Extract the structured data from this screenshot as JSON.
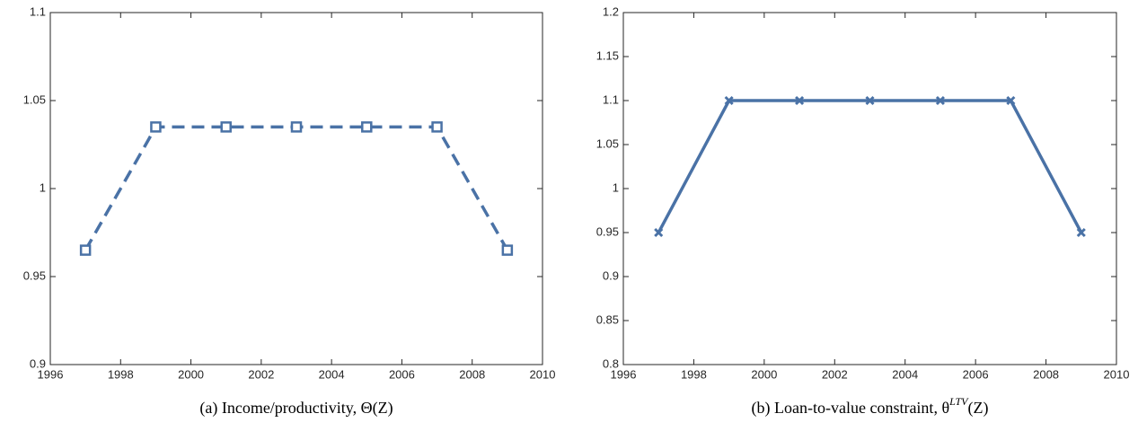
{
  "chart_data": [
    {
      "type": "line",
      "caption": "(a) Income/productivity, Θ(Z)",
      "x": [
        1997,
        1999,
        2001,
        2003,
        2005,
        2007,
        2009
      ],
      "series": [
        {
          "color": "#4a72a6",
          "line_style": "dashed",
          "marker": "square",
          "values": [
            0.965,
            1.035,
            1.035,
            1.035,
            1.035,
            1.035,
            0.965
          ]
        }
      ],
      "xlim": [
        1996,
        2010
      ],
      "xticks": [
        1996,
        1998,
        2000,
        2002,
        2004,
        2006,
        2008,
        2010
      ],
      "ylim": [
        0.9,
        1.1
      ],
      "yticks": [
        0.9,
        0.95,
        1,
        1.05,
        1.1
      ],
      "grid": false
    },
    {
      "type": "line",
      "caption": "(b) Loan-to-value constraint, θ",
      "caption_superscript": "LTV",
      "caption_end": "(Z)",
      "x": [
        1997,
        1999,
        2001,
        2003,
        2005,
        2007,
        2009
      ],
      "series": [
        {
          "color": "#4a72a6",
          "line_style": "solid",
          "marker": "x",
          "values": [
            0.95,
            1.1,
            1.1,
            1.1,
            1.1,
            1.1,
            0.95
          ]
        }
      ],
      "xlim": [
        1996,
        2010
      ],
      "xticks": [
        1996,
        1998,
        2000,
        2002,
        2004,
        2006,
        2008,
        2010
      ],
      "ylim": [
        0.8,
        1.2
      ],
      "yticks": [
        0.8,
        0.85,
        0.9,
        0.95,
        1,
        1.05,
        1.1,
        1.15,
        1.2
      ],
      "grid": false
    }
  ]
}
